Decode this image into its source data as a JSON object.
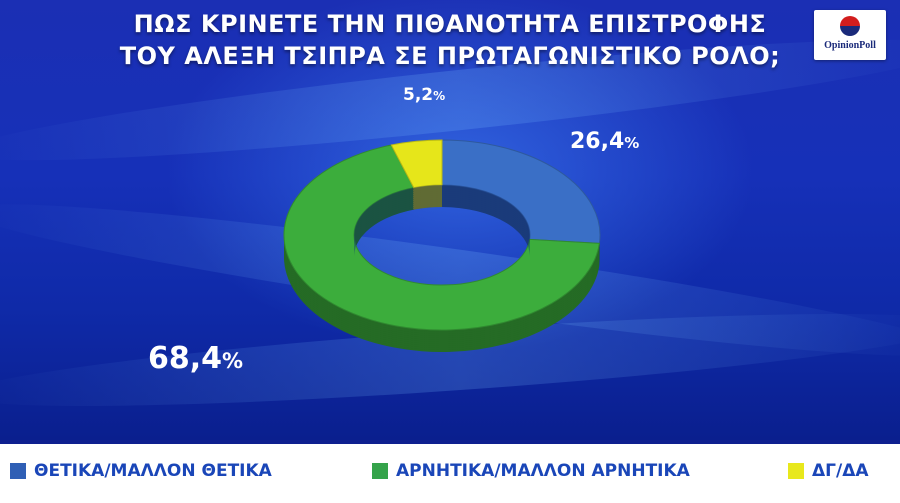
{
  "title": {
    "line1": "ΠΩΣ ΚΡΙΝΕΤΕ ΤΗΝ ΠΙΘΑΝΟΤΗΤΑ ΕΠΙΣΤΡΟΦΗΣ",
    "line2": "ΤΟΥ ΑΛΕΞΗ ΤΣΙΠΡΑ ΣΕ ΠΡΩΤΑΓΩΝΙΣΤΙΚΟ ΡΟΛΟ;"
  },
  "logo": {
    "text": "OpinionPoll"
  },
  "chart_data": {
    "type": "pie",
    "title": "ΠΩΣ ΚΡΙΝΕΤΕ ΤΗΝ ΠΙΘΑΝΟΤΗΤΑ ΕΠΙΣΤΡΟΦΗΣ ΤΟΥ ΑΛΕΞΗ ΤΣΙΠΡΑ ΣΕ ΠΡΩΤΑΓΩΝΙΣΤΙΚΟ ΡΟΛΟ;",
    "style": "3d-donut",
    "categories": [
      "ΘΕΤΙΚΑ/ΜΑΛΛΟΝ ΘΕΤΙΚΑ",
      "ΑΡΝΗΤΙΚΑ/ΜΑΛΛΟΝ ΑΡΝΗΤΙΚΑ",
      "ΔΓ/ΔΑ"
    ],
    "values": [
      26.4,
      68.4,
      5.2
    ],
    "value_labels": [
      "26,4",
      "68,4",
      "5,2"
    ],
    "unit": "%",
    "colors": [
      "#3a6fc6",
      "#3cad3c",
      "#e6e61a"
    ],
    "legend_position": "bottom"
  },
  "legend": {
    "items": [
      {
        "label": "ΘΕΤΙΚΑ/ΜΑΛΛΟΝ  ΘΕΤΙΚΑ",
        "color": "#2f5fb5"
      },
      {
        "label": "ΑΡΝΗΤΙΚΑ/ΜΑΛΛΟΝ  ΑΡΝΗΤΙΚΑ",
        "color": "#34a34a"
      },
      {
        "label": "ΔΓ/ΔΑ",
        "color": "#e8e81c"
      }
    ]
  }
}
